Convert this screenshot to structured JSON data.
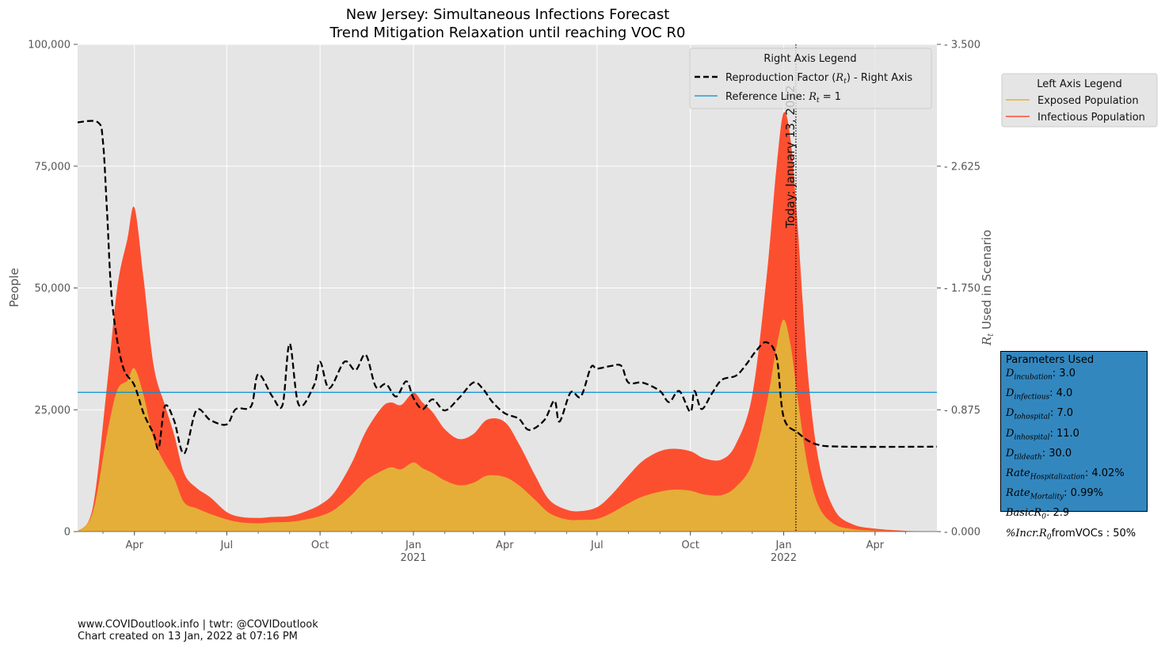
{
  "chart_data": {
    "type": "area",
    "title": "New Jersey: Simultaneous Infections Forecast",
    "subtitle": "Trend Mitigation Relaxation until reaching VOC R0",
    "ylabel": "People",
    "ylabel_right": "R_t Used in Scenario",
    "ylim": [
      0,
      100000
    ],
    "ylim_right": [
      0,
      3.5
    ],
    "xlim": [
      "2020-02-05",
      "2022-06-01"
    ],
    "yticks": [
      "0",
      "25,000",
      "50,000",
      "75,000",
      "100,000"
    ],
    "yticks_right": [
      "0.000",
      "0.875",
      "1.750",
      "2.625",
      "3.500"
    ],
    "xticks": [
      {
        "date": "2020-04-01",
        "label": "Apr",
        "year": ""
      },
      {
        "date": "2020-07-01",
        "label": "Jul",
        "year": ""
      },
      {
        "date": "2020-10-01",
        "label": "Oct",
        "year": ""
      },
      {
        "date": "2021-01-01",
        "label": "Jan",
        "year": "2021"
      },
      {
        "date": "2021-04-01",
        "label": "Apr",
        "year": ""
      },
      {
        "date": "2021-07-01",
        "label": "Jul",
        "year": ""
      },
      {
        "date": "2021-10-01",
        "label": "Oct",
        "year": ""
      },
      {
        "date": "2022-01-01",
        "label": "Jan",
        "year": "2022"
      },
      {
        "date": "2022-04-01",
        "label": "Apr",
        "year": ""
      }
    ],
    "today": {
      "date": "2022-01-13",
      "label": "Today: January 13, 2022"
    },
    "reference_line": 1.0,
    "colors": {
      "exposed": "#e5ae38",
      "infectious": "#fc4f30",
      "rt": "#000000",
      "reference": "#008fd5",
      "bg": "#e5e5e5",
      "grid": "#ffffff"
    },
    "series": [
      {
        "name": "Exposed Population",
        "points": [
          [
            "2020-02-05",
            0
          ],
          [
            "2020-02-20",
            4000
          ],
          [
            "2020-03-05",
            20000
          ],
          [
            "2020-03-15",
            29000
          ],
          [
            "2020-03-25",
            31000
          ],
          [
            "2020-04-01",
            33500
          ],
          [
            "2020-04-10",
            28000
          ],
          [
            "2020-04-20",
            19000
          ],
          [
            "2020-05-01",
            14000
          ],
          [
            "2020-05-10",
            11000
          ],
          [
            "2020-05-20",
            6000
          ],
          [
            "2020-06-01",
            4800
          ],
          [
            "2020-06-15",
            3600
          ],
          [
            "2020-07-01",
            2500
          ],
          [
            "2020-07-15",
            1900
          ],
          [
            "2020-08-01",
            1700
          ],
          [
            "2020-08-15",
            1900
          ],
          [
            "2020-09-01",
            2000
          ],
          [
            "2020-09-15",
            2400
          ],
          [
            "2020-10-01",
            3200
          ],
          [
            "2020-10-15",
            4500
          ],
          [
            "2020-11-01",
            7500
          ],
          [
            "2020-11-15",
            10500
          ],
          [
            "2020-12-01",
            12500
          ],
          [
            "2020-12-10",
            13200
          ],
          [
            "2020-12-20",
            12800
          ],
          [
            "2021-01-01",
            14200
          ],
          [
            "2021-01-10",
            13000
          ],
          [
            "2021-01-20",
            12000
          ],
          [
            "2021-02-01",
            10500
          ],
          [
            "2021-02-15",
            9500
          ],
          [
            "2021-03-01",
            10000
          ],
          [
            "2021-03-15",
            11500
          ],
          [
            "2021-04-01",
            11200
          ],
          [
            "2021-04-15",
            9500
          ],
          [
            "2021-05-01",
            6500
          ],
          [
            "2021-05-15",
            3800
          ],
          [
            "2021-06-01",
            2500
          ],
          [
            "2021-06-15",
            2400
          ],
          [
            "2021-07-01",
            2600
          ],
          [
            "2021-07-15",
            3800
          ],
          [
            "2021-08-01",
            5800
          ],
          [
            "2021-08-15",
            7200
          ],
          [
            "2021-09-01",
            8200
          ],
          [
            "2021-09-15",
            8600
          ],
          [
            "2021-10-01",
            8400
          ],
          [
            "2021-10-15",
            7600
          ],
          [
            "2021-11-01",
            7500
          ],
          [
            "2021-11-15",
            9200
          ],
          [
            "2021-12-01",
            14000
          ],
          [
            "2021-12-15",
            26000
          ],
          [
            "2021-12-25",
            38000
          ],
          [
            "2022-01-01",
            43500
          ],
          [
            "2022-01-08",
            38000
          ],
          [
            "2022-01-15",
            27000
          ],
          [
            "2022-01-25",
            13000
          ],
          [
            "2022-02-05",
            5000
          ],
          [
            "2022-02-20",
            1500
          ],
          [
            "2022-03-10",
            500
          ],
          [
            "2022-04-01",
            200
          ],
          [
            "2022-05-01",
            60
          ],
          [
            "2022-06-01",
            20
          ]
        ]
      },
      {
        "name": "Infectious Population",
        "points": [
          [
            "2020-02-05",
            0
          ],
          [
            "2020-02-20",
            5000
          ],
          [
            "2020-03-05",
            30000
          ],
          [
            "2020-03-15",
            50000
          ],
          [
            "2020-03-25",
            60000
          ],
          [
            "2020-04-01",
            66500
          ],
          [
            "2020-04-10",
            52000
          ],
          [
            "2020-04-20",
            34000
          ],
          [
            "2020-05-01",
            26000
          ],
          [
            "2020-05-10",
            20000
          ],
          [
            "2020-05-20",
            12000
          ],
          [
            "2020-06-01",
            9000
          ],
          [
            "2020-06-15",
            7000
          ],
          [
            "2020-07-01",
            4000
          ],
          [
            "2020-07-15",
            3000
          ],
          [
            "2020-08-01",
            2800
          ],
          [
            "2020-08-15",
            3000
          ],
          [
            "2020-09-01",
            3200
          ],
          [
            "2020-09-15",
            4000
          ],
          [
            "2020-10-01",
            5500
          ],
          [
            "2020-10-15",
            8000
          ],
          [
            "2020-11-01",
            14000
          ],
          [
            "2020-11-15",
            20500
          ],
          [
            "2020-12-01",
            25500
          ],
          [
            "2020-12-10",
            26500
          ],
          [
            "2020-12-20",
            26000
          ],
          [
            "2021-01-01",
            28500
          ],
          [
            "2021-01-10",
            26500
          ],
          [
            "2021-01-20",
            24500
          ],
          [
            "2021-02-01",
            21000
          ],
          [
            "2021-02-15",
            19000
          ],
          [
            "2021-03-01",
            20000
          ],
          [
            "2021-03-15",
            23000
          ],
          [
            "2021-04-01",
            22500
          ],
          [
            "2021-04-15",
            18000
          ],
          [
            "2021-05-01",
            11500
          ],
          [
            "2021-05-15",
            6500
          ],
          [
            "2021-06-01",
            4500
          ],
          [
            "2021-06-15",
            4200
          ],
          [
            "2021-07-01",
            5000
          ],
          [
            "2021-07-15",
            7500
          ],
          [
            "2021-08-01",
            11500
          ],
          [
            "2021-08-15",
            14500
          ],
          [
            "2021-09-01",
            16500
          ],
          [
            "2021-09-15",
            17000
          ],
          [
            "2021-10-01",
            16500
          ],
          [
            "2021-10-15",
            15000
          ],
          [
            "2021-11-01",
            14800
          ],
          [
            "2021-11-15",
            18000
          ],
          [
            "2021-12-01",
            28000
          ],
          [
            "2021-12-15",
            52000
          ],
          [
            "2021-12-25",
            75000
          ],
          [
            "2022-01-01",
            86000
          ],
          [
            "2022-01-08",
            80000
          ],
          [
            "2022-01-15",
            62000
          ],
          [
            "2022-01-25",
            32000
          ],
          [
            "2022-02-05",
            14000
          ],
          [
            "2022-02-20",
            4500
          ],
          [
            "2022-03-10",
            1500
          ],
          [
            "2022-04-01",
            600
          ],
          [
            "2022-05-01",
            150
          ],
          [
            "2022-06-01",
            40
          ]
        ]
      },
      {
        "name": "Reproduction Factor (R_t) - Right Axis",
        "points": [
          [
            "2020-02-05",
            2.94
          ],
          [
            "2020-02-25",
            2.94
          ],
          [
            "2020-03-01",
            2.8
          ],
          [
            "2020-03-05",
            2.3
          ],
          [
            "2020-03-10",
            1.65
          ],
          [
            "2020-03-20",
            1.2
          ],
          [
            "2020-04-01",
            1.05
          ],
          [
            "2020-04-10",
            0.85
          ],
          [
            "2020-04-20",
            0.7
          ],
          [
            "2020-04-25",
            0.6
          ],
          [
            "2020-05-01",
            0.9
          ],
          [
            "2020-05-10",
            0.8
          ],
          [
            "2020-05-20",
            0.56
          ],
          [
            "2020-06-01",
            0.87
          ],
          [
            "2020-06-15",
            0.8
          ],
          [
            "2020-07-01",
            0.77
          ],
          [
            "2020-07-10",
            0.88
          ],
          [
            "2020-07-25",
            0.9
          ],
          [
            "2020-08-01",
            1.13
          ],
          [
            "2020-08-15",
            0.97
          ],
          [
            "2020-08-25",
            0.91
          ],
          [
            "2020-09-01",
            1.35
          ],
          [
            "2020-09-10",
            0.91
          ],
          [
            "2020-09-25",
            1.05
          ],
          [
            "2020-10-01",
            1.22
          ],
          [
            "2020-10-10",
            1.03
          ],
          [
            "2020-10-25",
            1.22
          ],
          [
            "2020-11-05",
            1.16
          ],
          [
            "2020-11-15",
            1.27
          ],
          [
            "2020-11-25",
            1.04
          ],
          [
            "2020-12-05",
            1.06
          ],
          [
            "2020-12-15",
            0.97
          ],
          [
            "2020-12-25",
            1.08
          ],
          [
            "2021-01-01",
            0.96
          ],
          [
            "2021-01-10",
            0.88
          ],
          [
            "2021-01-20",
            0.95
          ],
          [
            "2021-02-01",
            0.87
          ],
          [
            "2021-02-15",
            0.96
          ],
          [
            "2021-03-01",
            1.07
          ],
          [
            "2021-03-10",
            1.03
          ],
          [
            "2021-03-20",
            0.93
          ],
          [
            "2021-04-01",
            0.85
          ],
          [
            "2021-04-15",
            0.81
          ],
          [
            "2021-04-25",
            0.73
          ],
          [
            "2021-05-10",
            0.8
          ],
          [
            "2021-05-20",
            0.94
          ],
          [
            "2021-05-25",
            0.79
          ],
          [
            "2021-06-05",
            1.0
          ],
          [
            "2021-06-15",
            0.97
          ],
          [
            "2021-06-25",
            1.18
          ],
          [
            "2021-07-01",
            1.17
          ],
          [
            "2021-07-15",
            1.19
          ],
          [
            "2021-07-25",
            1.19
          ],
          [
            "2021-08-01",
            1.07
          ],
          [
            "2021-08-15",
            1.07
          ],
          [
            "2021-09-01",
            1.01
          ],
          [
            "2021-09-10",
            0.93
          ],
          [
            "2021-09-20",
            1.01
          ],
          [
            "2021-10-01",
            0.86
          ],
          [
            "2021-10-05",
            1.01
          ],
          [
            "2021-10-12",
            0.88
          ],
          [
            "2021-10-22",
            0.99
          ],
          [
            "2021-11-01",
            1.09
          ],
          [
            "2021-11-15",
            1.12
          ],
          [
            "2021-11-25",
            1.2
          ],
          [
            "2021-12-05",
            1.3
          ],
          [
            "2021-12-15",
            1.36
          ],
          [
            "2021-12-25",
            1.25
          ],
          [
            "2022-01-01",
            0.82
          ],
          [
            "2022-01-15",
            0.71
          ],
          [
            "2022-02-01",
            0.63
          ],
          [
            "2022-03-01",
            0.61
          ],
          [
            "2022-06-01",
            0.61
          ]
        ]
      }
    ],
    "legend_left": {
      "title": "Left Axis Legend",
      "placement": "outside-right",
      "items": [
        "Exposed Population",
        "Infectious Population"
      ]
    },
    "legend_right": {
      "title": "Right Axis Legend",
      "placement": "top-right",
      "items": [
        "Reproduction Factor (R_t) - Right Axis",
        "Reference Line: R_t = 1"
      ]
    },
    "grid": true
  },
  "labels": {
    "title": "New Jersey: Simultaneous Infections Forecast",
    "subtitle": "Trend Mitigation Relaxation until reaching VOC R0",
    "ylabel": "People",
    "ylabel_right_prefix": "R",
    "ylabel_right_sub": "t",
    "ylabel_right_rest": " Used in Scenario",
    "today": "Today: January 13, 2022",
    "legend_right_title": "Right Axis Legend",
    "legend_right_rt_pre": "Reproduction Factor (",
    "legend_right_rt_r": "R",
    "legend_right_rt_sub": "t",
    "legend_right_rt_post": ") - Right Axis",
    "legend_right_ref_pre": "Reference Line: ",
    "legend_right_ref_r": "R",
    "legend_right_ref_sub": "t",
    "legend_right_ref_post": " = 1",
    "legend_left_title": "Left Axis Legend",
    "legend_left_exposed": "Exposed Population",
    "legend_left_infectious": "Infectious Population"
  },
  "footer": {
    "line1": "www.COVIDoutlook.info | twtr: @COVIDoutlook",
    "line2": "Chart created on 13 Jan, 2022 at 07:16 PM"
  },
  "params": {
    "title": "Parameters Used",
    "rows": [
      {
        "sym": "D",
        "sub": "incubation",
        "value": ": 3.0"
      },
      {
        "sym": "D",
        "sub": "infectious",
        "value": ": 4.0"
      },
      {
        "sym": "D",
        "sub": "tohospital",
        "value": ": 7.0"
      },
      {
        "sym": "D",
        "sub": "inhospital",
        "value": ": 11.0"
      },
      {
        "sym": "D",
        "sub": "tildeath",
        "value": ": 30.0"
      },
      {
        "sym": "Rate",
        "sub": "Hospitalization",
        "value": ": 4.02%"
      },
      {
        "sym": "Rate",
        "sub": "Mortality",
        "value": ": 0.99%"
      },
      {
        "sym": "BasicR",
        "sub": "0",
        "value": ": 2.9"
      },
      {
        "sym": "%Incr.R",
        "sub": "0",
        "value": "fromVOCs : 50%"
      }
    ]
  }
}
